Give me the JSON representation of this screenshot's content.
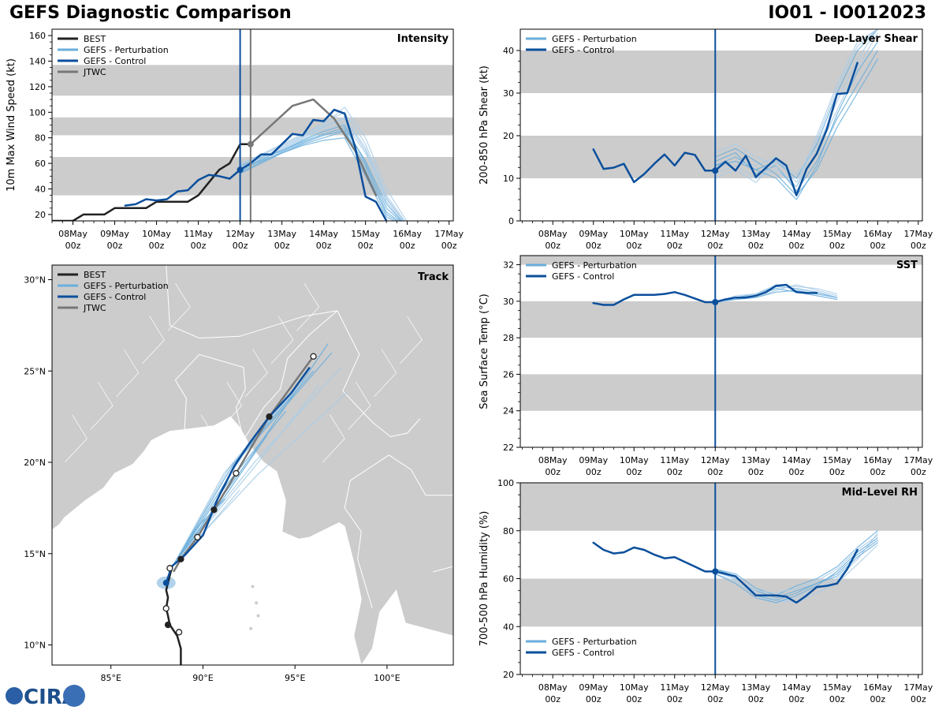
{
  "title": "GEFS Diagnostic Comparison",
  "storm_id": "IO01 - IO012023",
  "logo_text": "CIRA",
  "x_ticks": [
    {
      "top": "08May",
      "bottom": "00z"
    },
    {
      "top": "09May",
      "bottom": "00z"
    },
    {
      "top": "10May",
      "bottom": "00z"
    },
    {
      "top": "11May",
      "bottom": "00z"
    },
    {
      "top": "12May",
      "bottom": "00z"
    },
    {
      "top": "13May",
      "bottom": "00z"
    },
    {
      "top": "14May",
      "bottom": "00z"
    },
    {
      "top": "15May",
      "bottom": "00z"
    },
    {
      "top": "16May",
      "bottom": "00z"
    },
    {
      "top": "17May",
      "bottom": "00z"
    }
  ],
  "colors": {
    "best": "#222222",
    "perturbation": "#6aaedc",
    "perturbation_light": "#a9cde8",
    "control": "#0b4f9c",
    "jtwc": "#777777",
    "band": "#cccccc",
    "land": "#cccccc"
  },
  "chart_data": [
    {
      "id": "intensity",
      "type": "line",
      "title": "Intensity",
      "ylabel": "10m Max Wind Speed (kt)",
      "xlim": [
        -0.5,
        9.1
      ],
      "ylim": [
        15,
        165
      ],
      "yticks": [
        20,
        40,
        60,
        80,
        100,
        120,
        140,
        160
      ],
      "bands": [
        [
          35,
          65
        ],
        [
          82,
          96
        ],
        [
          113,
          137
        ]
      ],
      "init_time": 4.0,
      "jtwc_time": 4.25,
      "legend": [
        "BEST",
        "GEFS - Perturbation",
        "GEFS - Control",
        "JTWC"
      ],
      "best": {
        "x": [
          -0.5,
          0,
          0.25,
          0.5,
          0.75,
          1,
          1.25,
          1.5,
          1.75,
          2,
          2.25,
          2.5,
          2.75,
          3,
          3.25,
          3.5,
          3.75,
          4,
          4.25
        ],
        "y": [
          15,
          15,
          20,
          20,
          20,
          25,
          25,
          25,
          25,
          30,
          30,
          30,
          30,
          35,
          45,
          55,
          60,
          75,
          75
        ]
      },
      "control": {
        "x": [
          4,
          4.25,
          4.5,
          4.75,
          5,
          5.25,
          5.5,
          5.75,
          6,
          6.25,
          6.5,
          6.75,
          7,
          7.25,
          7.5
        ],
        "y": [
          55,
          60,
          67,
          67,
          75,
          83,
          82,
          94,
          93,
          102,
          99,
          73,
          34,
          30,
          15
        ]
      },
      "control_pre": {
        "x": [
          1.25,
          1.5,
          1.75,
          2,
          2.25,
          2.5,
          2.75,
          3,
          3.25,
          3.5,
          3.75,
          4
        ],
        "y": [
          27,
          28,
          32,
          31,
          32,
          38,
          39,
          47,
          51,
          50,
          48,
          55
        ]
      },
      "jtwc": {
        "x": [
          4.25,
          4.75,
          5.25,
          5.75,
          6.25,
          6.75,
          7.25
        ],
        "y": [
          75,
          90,
          105,
          110,
          95,
          70,
          35
        ]
      },
      "ensemble": {
        "x": [
          4,
          4.5,
          5,
          5.5,
          6,
          6.5,
          7,
          7.5,
          8
        ],
        "members": [
          [
            58,
            65,
            70,
            78,
            85,
            90,
            60,
            25,
            10
          ],
          [
            55,
            62,
            72,
            80,
            88,
            95,
            70,
            30,
            10
          ],
          [
            52,
            60,
            68,
            75,
            80,
            85,
            55,
            20,
            10
          ],
          [
            60,
            66,
            74,
            82,
            92,
            100,
            75,
            35,
            12
          ],
          [
            54,
            63,
            70,
            77,
            83,
            88,
            62,
            28,
            10
          ],
          [
            57,
            64,
            71,
            79,
            86,
            92,
            68,
            32,
            11
          ],
          [
            53,
            61,
            69,
            76,
            82,
            86,
            58,
            22,
            10
          ],
          [
            59,
            67,
            75,
            83,
            90,
            104,
            80,
            40,
            14
          ],
          [
            56,
            62,
            68,
            74,
            78,
            80,
            50,
            18,
            10
          ],
          [
            55,
            64,
            73,
            81,
            89,
            96,
            72,
            33,
            11
          ]
        ]
      },
      "markers": [
        {
          "series": "control",
          "x": 4.0,
          "y": 55
        },
        {
          "series": "jtwc",
          "x": 4.25,
          "y": 75
        }
      ]
    },
    {
      "id": "shear",
      "type": "line",
      "title": "Deep-Layer Shear",
      "ylabel": "200-850 hPa Shear (kt)",
      "xlim": [
        -0.8,
        9.1
      ],
      "ylim": [
        0,
        45
      ],
      "yticks": [
        0,
        10,
        20,
        30,
        40
      ],
      "bands": [
        [
          10,
          20
        ],
        [
          30,
          40
        ]
      ],
      "init_time": 4.0,
      "legend": [
        "GEFS - Perturbation",
        "GEFS - Control"
      ],
      "control": {
        "x": [
          1,
          1.25,
          1.5,
          1.75,
          2,
          2.25,
          2.5,
          2.75,
          3,
          3.25,
          3.5,
          3.75,
          4,
          4.25,
          4.5,
          4.75,
          5,
          5.25,
          5.5,
          5.75,
          6,
          6.25,
          6.5,
          6.75,
          7,
          7.25,
          7.5
        ],
        "y": [
          16.8,
          12.2,
          12.5,
          13.4,
          9.1,
          11,
          13.4,
          15.6,
          13,
          16,
          15.5,
          11.8,
          11.8,
          13.9,
          11.8,
          15.3,
          10.3,
          12.5,
          14.7,
          13,
          6,
          12.2,
          15.8,
          21.5,
          29.8,
          30,
          37.1
        ]
      },
      "ensemble": {
        "x": [
          4,
          4.5,
          5,
          5.5,
          6,
          6.5,
          7,
          7.5,
          8
        ],
        "members": [
          [
            13,
            15,
            12,
            14,
            10,
            18,
            30,
            40,
            45
          ],
          [
            11,
            13,
            10,
            12,
            8,
            16,
            26,
            36,
            44
          ],
          [
            14,
            16,
            11,
            13,
            7,
            14,
            24,
            32,
            40
          ],
          [
            12,
            14,
            13,
            15,
            9,
            20,
            32,
            42,
            45
          ],
          [
            15,
            17,
            14,
            11,
            6,
            12,
            22,
            30,
            38
          ],
          [
            10,
            12,
            9,
            14,
            11,
            17,
            28,
            38,
            45
          ],
          [
            13,
            14,
            12,
            10,
            5,
            13,
            25,
            35,
            42
          ],
          [
            16,
            18,
            15,
            13,
            8,
            19,
            31,
            41,
            45
          ]
        ]
      },
      "markers": [
        {
          "series": "control",
          "x": 4.0,
          "y": 11.8
        }
      ]
    },
    {
      "id": "track",
      "type": "scatter",
      "title": "Track",
      "xlim": [
        81.8,
        103.6
      ],
      "ylim": [
        8.9,
        30.8
      ],
      "xticks": [
        {
          "value": 85,
          "label": "85°E"
        },
        {
          "value": 90,
          "label": "90°E"
        },
        {
          "value": 95,
          "label": "95°E"
        },
        {
          "value": 100,
          "label": "100°E"
        }
      ],
      "yticks": [
        {
          "value": 10,
          "label": "10°N"
        },
        {
          "value": 15,
          "label": "15°N"
        },
        {
          "value": 20,
          "label": "20°N"
        },
        {
          "value": 25,
          "label": "25°N"
        },
        {
          "value": 30,
          "label": "30°N"
        }
      ],
      "legend": [
        "BEST",
        "GEFS - Perturbation",
        "GEFS - Control",
        "JTWC"
      ],
      "best": {
        "lon": [
          88.8,
          88.8,
          88.6,
          88.2,
          88.1,
          88.0,
          88.1,
          88.0,
          88.1,
          88.2,
          88.3
        ],
        "lat": [
          8.9,
          9.8,
          10.5,
          11.1,
          11.6,
          12.0,
          12.6,
          13.0,
          13.4,
          13.8,
          14.2
        ]
      },
      "best_points": [
        {
          "lon": 88.7,
          "lat": 10.7,
          "filled": false
        },
        {
          "lon": 88.1,
          "lat": 11.1,
          "filled": true
        },
        {
          "lon": 88.0,
          "lat": 12.0,
          "filled": false
        }
      ],
      "control": {
        "lon": [
          88.0,
          88.3,
          89.0,
          90.0,
          90.8,
          91.7,
          92.5,
          93.6,
          94.8,
          95.8
        ],
        "lat": [
          13.4,
          14.3,
          14.9,
          16.0,
          18.0,
          19.8,
          21.0,
          22.5,
          23.8,
          25.2
        ]
      },
      "jtwc": {
        "lon": [
          88.4,
          88.8,
          89.7,
          90.6,
          91.8,
          93.6,
          96.0
        ],
        "lat": [
          14.0,
          14.7,
          15.9,
          17.4,
          19.4,
          22.5,
          25.8
        ]
      },
      "jtwc_points": [
        {
          "lon": 88.2,
          "lat": 14.2,
          "filled": false
        },
        {
          "lon": 88.8,
          "lat": 14.7,
          "filled": true
        },
        {
          "lon": 89.7,
          "lat": 15.9,
          "filled": false
        },
        {
          "lon": 90.6,
          "lat": 17.4,
          "filled": true
        },
        {
          "lon": 91.8,
          "lat": 19.4,
          "filled": false
        },
        {
          "lon": 93.6,
          "lat": 22.5,
          "filled": true
        },
        {
          "lon": 96.0,
          "lat": 25.8,
          "filled": false
        }
      ],
      "ensemble_endpoints": [
        [
          97.0,
          26.0
        ],
        [
          97.5,
          25.2
        ],
        [
          96.8,
          26.5
        ],
        [
          95.5,
          24.5
        ],
        [
          94.5,
          22.8
        ],
        [
          92.0,
          18.5
        ],
        [
          96.0,
          25.0
        ],
        [
          97.8,
          23.8
        ],
        [
          93.5,
          21.5
        ],
        [
          95.0,
          24.0
        ],
        [
          91.2,
          18.0
        ],
        [
          96.3,
          24.2
        ]
      ],
      "markers": [
        {
          "series": "control",
          "lon": 88.0,
          "lat": 13.4
        }
      ]
    },
    {
      "id": "sst",
      "type": "line",
      "title": "SST",
      "ylabel": "Sea Surface Temp (°C)",
      "xlim": [
        -0.8,
        9.1
      ],
      "ylim": [
        22,
        32.5
      ],
      "yticks": [
        22,
        24,
        26,
        28,
        30,
        32
      ],
      "bands": [
        [
          24,
          26
        ],
        [
          28,
          30
        ],
        [
          32,
          32.5
        ]
      ],
      "init_time": 4.0,
      "legend": [
        "GEFS - Perturbation",
        "GEFS - Control"
      ],
      "control": {
        "x": [
          1,
          1.25,
          1.5,
          1.75,
          2,
          2.25,
          2.5,
          2.75,
          3,
          3.25,
          3.5,
          3.75,
          4,
          4.25,
          4.5,
          4.75,
          5,
          5.25,
          5.5,
          5.75,
          6,
          6.25,
          6.5
        ],
        "y": [
          29.9,
          29.8,
          29.8,
          30.1,
          30.35,
          30.35,
          30.35,
          30.4,
          30.5,
          30.35,
          30.15,
          29.95,
          29.95,
          30.1,
          30.2,
          30.2,
          30.3,
          30.5,
          30.85,
          30.9,
          30.5,
          30.45,
          30.45
        ]
      },
      "ensemble": {
        "x": [
          4,
          4.5,
          5,
          5.5,
          6,
          6.5,
          7
        ],
        "members": [
          [
            30.0,
            30.2,
            30.4,
            30.8,
            30.7,
            30.5,
            30.2
          ],
          [
            29.9,
            30.1,
            30.2,
            30.6,
            30.9,
            30.6,
            30.3
          ],
          [
            30.0,
            30.2,
            30.3,
            30.7,
            30.5,
            30.3,
            30.1
          ],
          [
            29.9,
            30.3,
            30.4,
            30.9,
            30.8,
            30.7,
            30.4
          ],
          [
            30.0,
            30.1,
            30.2,
            30.5,
            30.6,
            30.4,
            30.2
          ]
        ]
      },
      "markers": [
        {
          "series": "control",
          "x": 4.0,
          "y": 29.95
        }
      ]
    },
    {
      "id": "rh",
      "type": "line",
      "title": "Mid-Level RH",
      "ylabel": "700-500 hPa Humidity (%)",
      "xlim": [
        -0.8,
        9.1
      ],
      "ylim": [
        20,
        100
      ],
      "yticks": [
        20,
        40,
        60,
        80,
        100
      ],
      "bands": [
        [
          40,
          60
        ],
        [
          80,
          100
        ]
      ],
      "init_time": 4.0,
      "legend": [
        "GEFS - Perturbation",
        "GEFS - Control"
      ],
      "control": {
        "x": [
          1,
          1.25,
          1.5,
          1.75,
          2,
          2.25,
          2.5,
          2.75,
          3,
          3.25,
          3.5,
          3.75,
          4,
          4.25,
          4.5,
          4.75,
          5,
          5.25,
          5.5,
          5.75,
          6,
          6.25,
          6.5,
          6.75,
          7,
          7.25,
          7.5
        ],
        "y": [
          75,
          72,
          70.5,
          71,
          73,
          72,
          70,
          68.5,
          69,
          67,
          65,
          63,
          63,
          62,
          61,
          57,
          53,
          53,
          53,
          52.5,
          50,
          53,
          56.5,
          57,
          58,
          64,
          72
        ]
      },
      "ensemble": {
        "x": [
          4,
          4.5,
          5,
          5.5,
          6,
          6.5,
          7,
          7.5,
          8
        ],
        "members": [
          [
            63,
            60,
            55,
            52,
            55,
            58,
            62,
            70,
            76
          ],
          [
            62,
            59,
            53,
            50,
            52,
            56,
            60,
            68,
            79
          ],
          [
            64,
            62,
            56,
            53,
            57,
            60,
            65,
            73,
            80
          ],
          [
            63,
            61,
            54,
            51,
            50,
            54,
            58,
            66,
            74
          ],
          [
            62,
            58,
            52,
            50,
            53,
            57,
            63,
            71,
            77
          ],
          [
            63,
            60,
            55,
            54,
            56,
            59,
            64,
            72,
            78
          ],
          [
            64,
            61,
            53,
            51,
            54,
            58,
            61,
            69,
            75
          ]
        ]
      },
      "markers": [
        {
          "series": "control",
          "x": 4.0,
          "y": 63
        }
      ]
    }
  ]
}
